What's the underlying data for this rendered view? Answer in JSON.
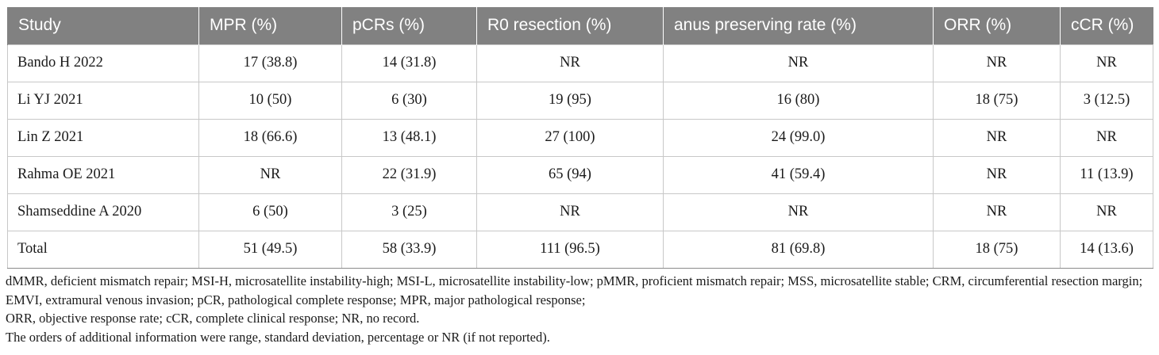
{
  "table": {
    "headers": [
      "Study",
      "MPR (%)",
      "pCRs (%)",
      "R0 resection (%)",
      "anus preserving rate (%)",
      "ORR (%)",
      "cCR (%)"
    ],
    "rows": [
      [
        "Bando H 2022",
        "17 (38.8)",
        "14 (31.8)",
        "NR",
        "NR",
        "NR",
        "NR"
      ],
      [
        "Li YJ 2021",
        "10 (50)",
        "6 (30)",
        "19 (95)",
        "16 (80)",
        "18 (75)",
        "3 (12.5)"
      ],
      [
        "Lin Z 2021",
        "18 (66.6)",
        "13 (48.1)",
        "27 (100)",
        "24 (99.0)",
        "NR",
        "NR"
      ],
      [
        "Rahma OE 2021",
        "NR",
        "22 (31.9)",
        "65 (94)",
        "41 (59.4)",
        "NR",
        "11 (13.9)"
      ],
      [
        "Shamseddine A 2020",
        "6 (50)",
        "3 (25)",
        "NR",
        "NR",
        "NR",
        "NR"
      ],
      [
        "Total",
        "51 (49.5)",
        "58 (33.9)",
        "111 (96.5)",
        "81 (69.8)",
        "18 (75)",
        "14 (13.6)"
      ]
    ]
  },
  "footnotes": {
    "abbreviations_1": "dMMR, deficient mismatch repair; MSI-H, microsatellite instability-high; MSI-L, microsatellite instability-low; pMMR, proficient mismatch repair; MSS, microsatellite stable; CRM, circumferential resection margin; EMVI, extramural venous invasion; pCR, pathological complete response; MPR, major pathological response;",
    "abbreviations_2": "ORR, objective response rate; cCR, complete clinical response; NR, no record.",
    "additional_info": "The orders of additional information were range, standard deviation, percentage or NR (if not reported)."
  },
  "colors": {
    "header_background": "#818181",
    "header_text": "#ffffff",
    "grid_lines": "#c8c8c8"
  }
}
